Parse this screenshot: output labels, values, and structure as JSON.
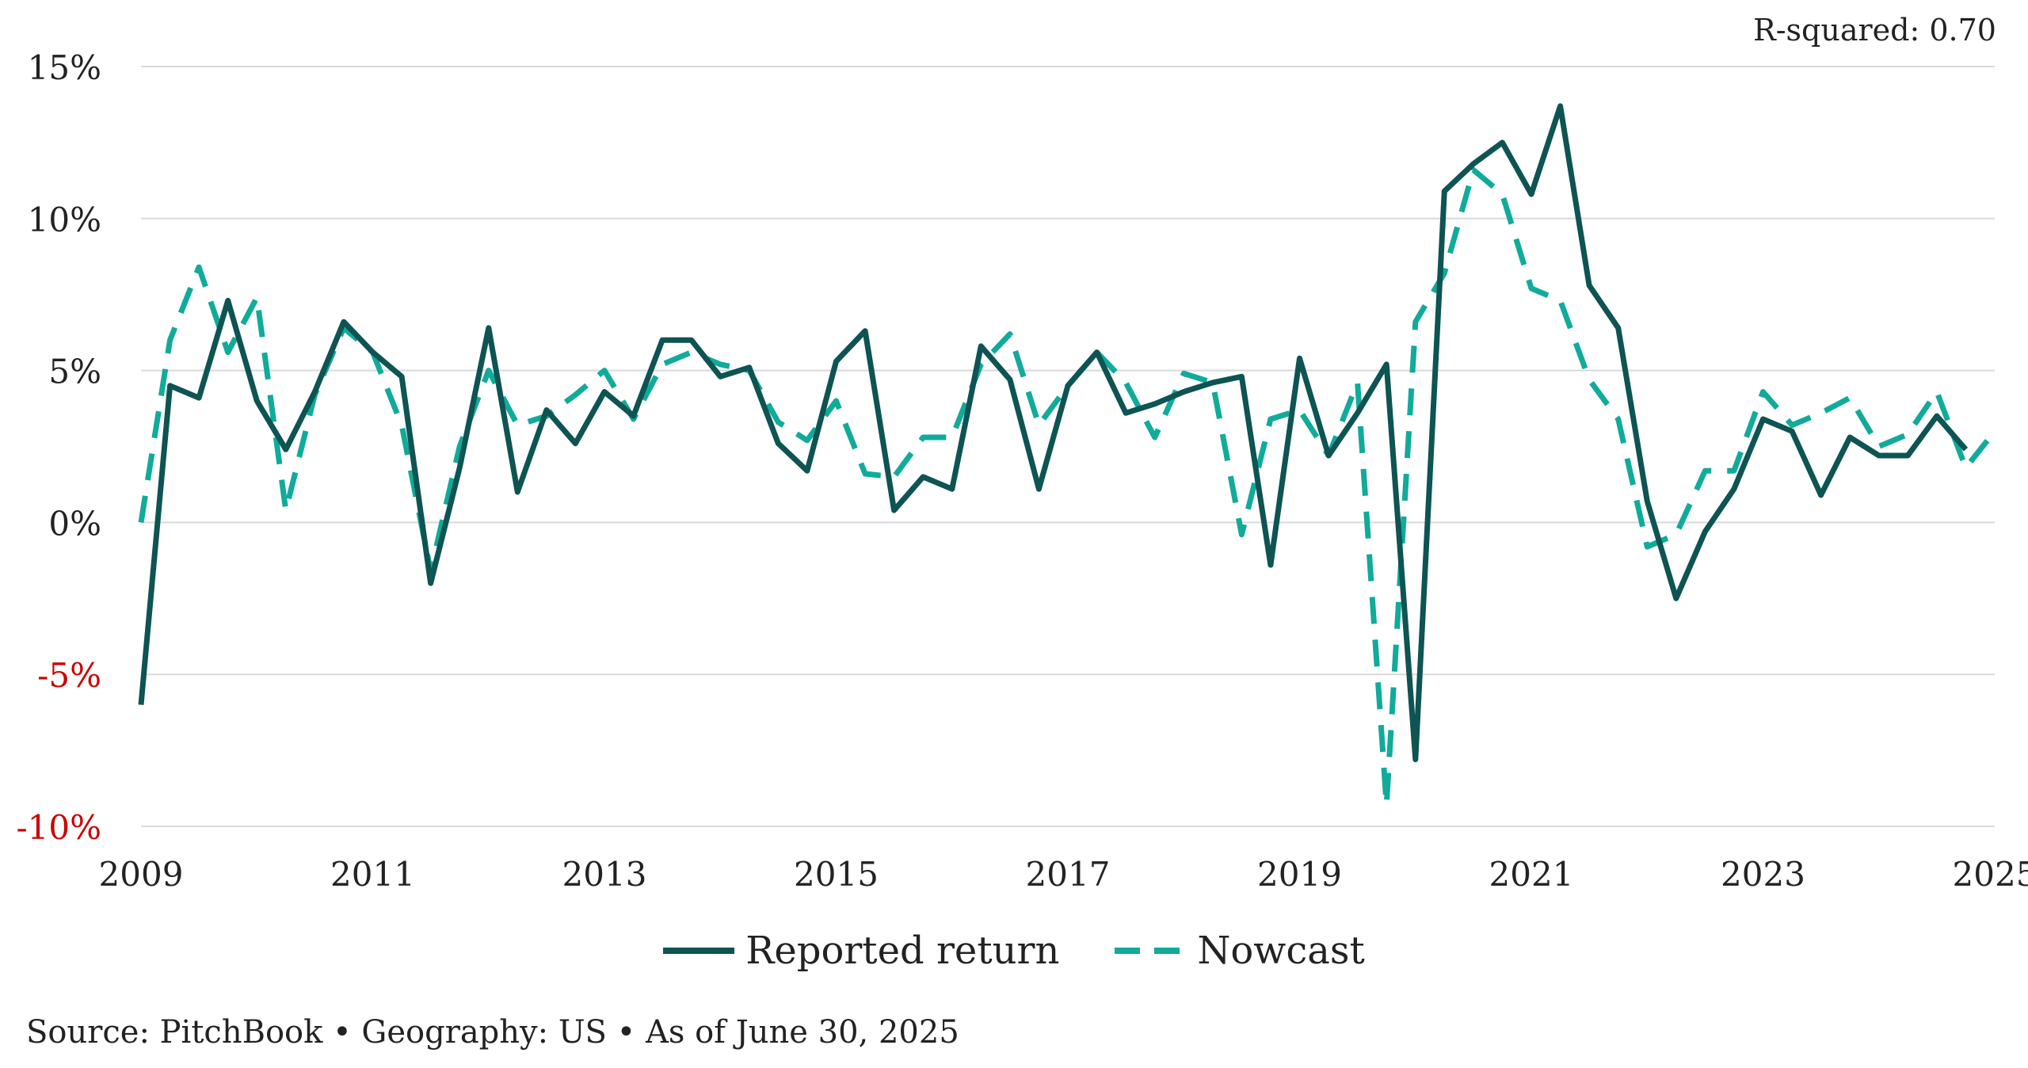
{
  "annotation": "R-squared: 0.70",
  "source_note": "Source: PitchBook • Geography: US • As of June 30, 2025",
  "colors": {
    "reported": "#0d5453",
    "nowcast": "#10ab9a",
    "negative_tick": "#cc0000",
    "tick": "#222222",
    "grid": "#d9d9d9"
  },
  "chart_data": {
    "type": "line",
    "title": "",
    "xlabel": "",
    "ylabel": "",
    "xlim": [
      2009,
      2025
    ],
    "ylim": [
      -10,
      15
    ],
    "grid": true,
    "legend_placement": "bottom-center",
    "x_ticks": [
      "2009",
      "2011",
      "2013",
      "2015",
      "2017",
      "2019",
      "2021",
      "2023",
      "2025"
    ],
    "y_ticks": [
      {
        "value": 15,
        "label": "15%"
      },
      {
        "value": 10,
        "label": "10%"
      },
      {
        "value": 5,
        "label": "5%"
      },
      {
        "value": 0,
        "label": "0%"
      },
      {
        "value": -5,
        "label": "-5%"
      },
      {
        "value": -10,
        "label": "-10%"
      }
    ],
    "series": [
      {
        "name": "Reported return",
        "style": "solid",
        "x": [
          2009.0,
          2009.25,
          2009.5,
          2009.75,
          2010.0,
          2010.25,
          2010.5,
          2010.75,
          2011.0,
          2011.25,
          2011.5,
          2011.75,
          2012.0,
          2012.25,
          2012.5,
          2012.75,
          2013.0,
          2013.25,
          2013.5,
          2013.75,
          2014.0,
          2014.25,
          2014.5,
          2014.75,
          2015.0,
          2015.25,
          2015.5,
          2015.75,
          2016.0,
          2016.25,
          2016.5,
          2016.75,
          2017.0,
          2017.25,
          2017.5,
          2017.75,
          2018.0,
          2018.25,
          2018.5,
          2018.75,
          2019.0,
          2019.25,
          2019.5,
          2019.75,
          2020.0,
          2020.25,
          2020.5,
          2020.75,
          2021.0,
          2021.25,
          2021.5,
          2021.75,
          2022.0,
          2022.25,
          2022.5,
          2022.75,
          2023.0,
          2023.25,
          2023.5,
          2023.75,
          2024.0,
          2024.25,
          2024.5,
          2024.75
        ],
        "y": [
          -6.0,
          4.5,
          4.1,
          7.3,
          4.0,
          2.4,
          4.3,
          6.6,
          5.6,
          4.8,
          -2.0,
          1.8,
          6.4,
          1.0,
          3.7,
          2.6,
          4.3,
          3.5,
          6.0,
          6.0,
          4.8,
          5.1,
          2.6,
          1.7,
          5.3,
          6.3,
          0.4,
          1.5,
          1.1,
          5.8,
          4.7,
          1.1,
          4.5,
          5.6,
          3.6,
          3.9,
          4.3,
          4.6,
          4.8,
          -1.4,
          5.4,
          2.2,
          3.6,
          5.2,
          -7.8,
          10.9,
          11.8,
          12.5,
          10.8,
          13.7,
          7.8,
          6.4,
          0.7,
          -2.5,
          -0.3,
          1.1,
          3.4,
          3.0,
          0.9,
          2.8,
          2.2,
          2.2,
          3.5,
          2.4
        ]
      },
      {
        "name": "Nowcast",
        "style": "dashed",
        "x": [
          2009.0,
          2009.25,
          2009.5,
          2009.75,
          2010.0,
          2010.25,
          2010.5,
          2010.75,
          2011.0,
          2011.25,
          2011.5,
          2011.75,
          2012.0,
          2012.25,
          2012.5,
          2012.75,
          2013.0,
          2013.25,
          2013.5,
          2013.75,
          2014.0,
          2014.25,
          2014.5,
          2014.75,
          2015.0,
          2015.25,
          2015.5,
          2015.75,
          2016.0,
          2016.25,
          2016.5,
          2016.75,
          2017.0,
          2017.25,
          2017.5,
          2017.75,
          2018.0,
          2018.25,
          2018.5,
          2018.75,
          2019.0,
          2019.25,
          2019.5,
          2019.75,
          2020.0,
          2020.25,
          2020.5,
          2020.75,
          2021.0,
          2021.25,
          2021.5,
          2021.75,
          2022.0,
          2022.25,
          2022.5,
          2022.75,
          2023.0,
          2023.25,
          2023.5,
          2023.75,
          2024.0,
          2024.25,
          2024.5,
          2024.75,
          2025.0
        ],
        "y": [
          0.0,
          6.0,
          8.4,
          5.6,
          7.4,
          0.4,
          4.2,
          6.4,
          5.6,
          3.2,
          -1.6,
          2.5,
          5.0,
          3.2,
          3.5,
          4.2,
          5.0,
          3.4,
          5.2,
          5.6,
          5.2,
          5.0,
          3.3,
          2.7,
          4.0,
          1.6,
          1.5,
          2.8,
          2.8,
          5.2,
          6.2,
          3.2,
          4.5,
          5.6,
          4.6,
          2.8,
          4.9,
          4.6,
          -0.4,
          3.4,
          3.7,
          2.2,
          4.6,
          -9.3,
          6.6,
          8.2,
          11.6,
          10.8,
          7.7,
          7.3,
          4.7,
          3.4,
          -0.8,
          -0.4,
          1.7,
          1.7,
          4.3,
          3.2,
          3.6,
          4.1,
          2.5,
          2.9,
          4.3,
          1.8,
          3.0
        ]
      }
    ]
  }
}
